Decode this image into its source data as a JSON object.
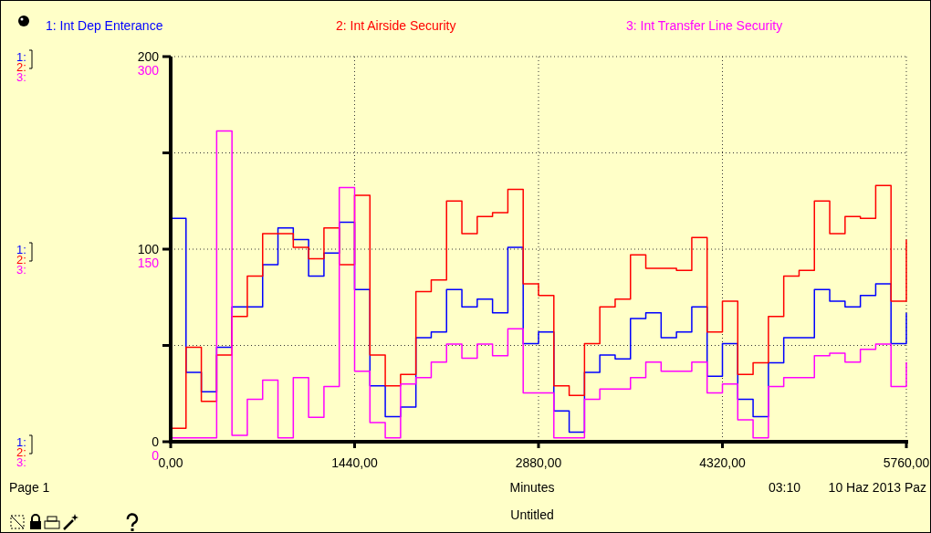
{
  "chart_data": {
    "type": "step",
    "title": "Untitled",
    "xlabel": "Minutes",
    "annotations": [
      "Page 1",
      "03:10",
      "10 Haz 2013 Paz",
      "1:",
      "2:",
      "3:",
      "1:",
      "2:",
      "3:",
      "1:",
      "2:",
      "3:"
    ],
    "x": [
      0,
      120,
      240,
      360,
      480,
      600,
      720,
      840,
      960,
      1080,
      1200,
      1320,
      1440,
      1560,
      1680,
      1800,
      1920,
      2040,
      2160,
      2280,
      2400,
      2520,
      2640,
      2760,
      2880,
      3000,
      3120,
      3240,
      3360,
      3480,
      3600,
      3720,
      3840,
      3960,
      4080,
      4200,
      4320,
      4440,
      4560,
      4680,
      4800,
      4920,
      5040,
      5160,
      5280,
      5400,
      5520,
      5640,
      5760
    ],
    "xlim": [
      0,
      5760
    ],
    "xticks": [
      {
        "value": 0,
        "label": "0,00"
      },
      {
        "value": 1440,
        "label": "1440,00"
      },
      {
        "value": 2880,
        "label": "2880,00"
      },
      {
        "value": 4320,
        "label": "4320,00"
      },
      {
        "value": 5760,
        "label": "5760,00"
      }
    ],
    "ylim": [
      0,
      200
    ],
    "yticks": [
      0,
      {
        "value": 50,
        "label": null
      },
      100,
      {
        "value": 150,
        "label": null
      },
      200
    ],
    "y2lim": [
      0,
      300
    ],
    "y2ticks": [
      0,
      150,
      300
    ],
    "grid": true,
    "legend": "top",
    "series": [
      {
        "name": "1: Int Dep Enterance",
        "color": "#0000ff",
        "values": [
          116,
          36,
          26,
          49,
          70,
          70,
          92,
          111,
          105,
          86,
          98,
          114,
          79,
          29,
          13,
          18,
          54,
          57,
          79,
          70,
          74,
          67,
          101,
          51,
          57,
          16,
          5,
          36,
          45,
          43,
          64,
          67,
          54,
          57,
          70,
          34,
          51,
          22,
          13,
          41,
          54,
          54,
          79,
          73,
          70,
          76,
          82,
          51,
          67
        ]
      },
      {
        "name": "2: Int Airside Security",
        "color": "#ff0000",
        "values": [
          7,
          49,
          21,
          45,
          65,
          86,
          108,
          108,
          101,
          95,
          111,
          92,
          128,
          45,
          29,
          35,
          78,
          84,
          125,
          108,
          117,
          119,
          131,
          82,
          76,
          29,
          24,
          51,
          70,
          74,
          97,
          90,
          90,
          89,
          106,
          57,
          73,
          35,
          41,
          65,
          86,
          89,
          125,
          108,
          117,
          116,
          133,
          73,
          105
        ]
      },
      {
        "name": "3: Int Transfer Line Security",
        "color": "#ff00ff",
        "axis": "y2",
        "values": [
          3,
          3,
          3,
          242,
          5,
          33,
          48,
          3,
          50,
          19,
          43,
          198,
          55,
          15,
          3,
          45,
          50,
          62,
          76,
          65,
          76,
          67,
          88,
          38,
          38,
          3,
          3,
          33,
          41,
          41,
          50,
          62,
          55,
          55,
          62,
          38,
          45,
          17,
          3,
          43,
          50,
          50,
          67,
          69,
          62,
          72,
          76,
          43,
          62
        ]
      }
    ]
  }
}
